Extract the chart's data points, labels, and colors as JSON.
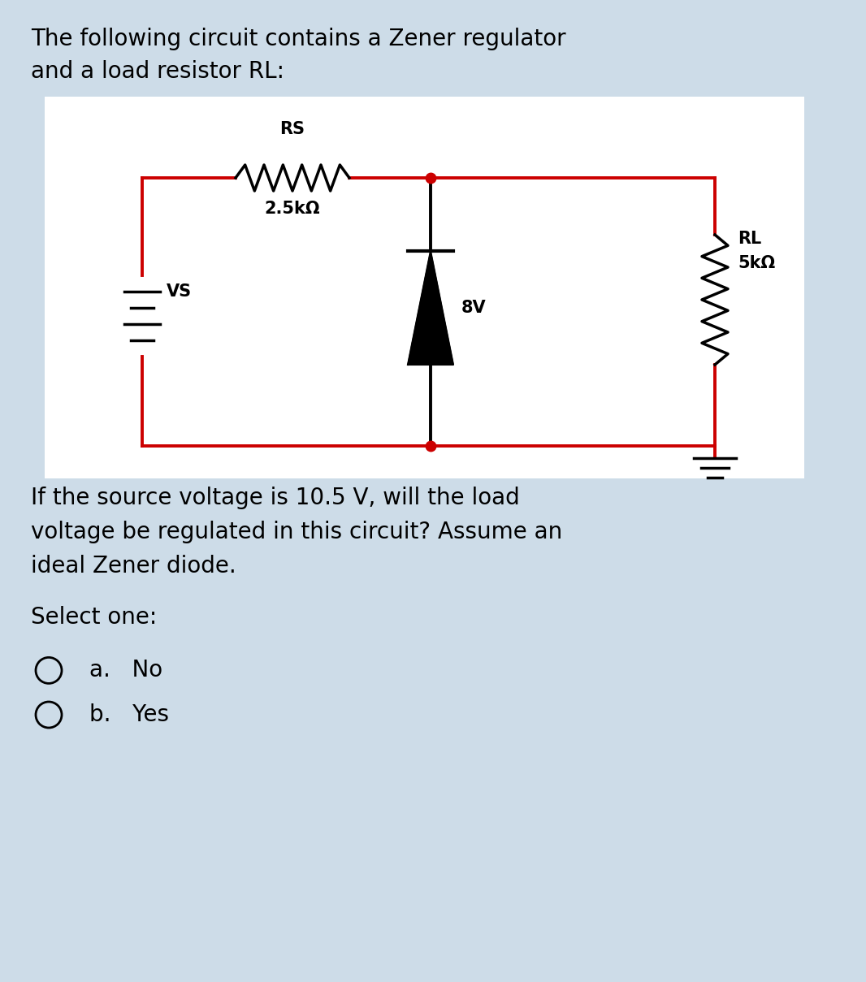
{
  "bg_color": "#cddce8",
  "panel_color": "#ffffff",
  "circuit_color": "#cc0000",
  "black": "#000000",
  "title_line1": "The following circuit contains a Zener regulator",
  "title_line2": "and a load resistor RL:",
  "question_line1": "If the source voltage is 10.5 V, will the load",
  "question_line2": "voltage be regulated in this circuit? Assume an",
  "question_line3": "ideal Zener diode.",
  "select_one": "Select one:",
  "option_a": "No",
  "option_b": "Yes",
  "rs_label": "RS",
  "rs_value": "2.5kΩ",
  "zener_label": "8V",
  "rl_label": "RL",
  "rl_value": "5kΩ",
  "vs_label": "VS",
  "font_size_title": 20,
  "font_size_circuit": 15,
  "font_size_question": 20,
  "font_size_options": 20
}
